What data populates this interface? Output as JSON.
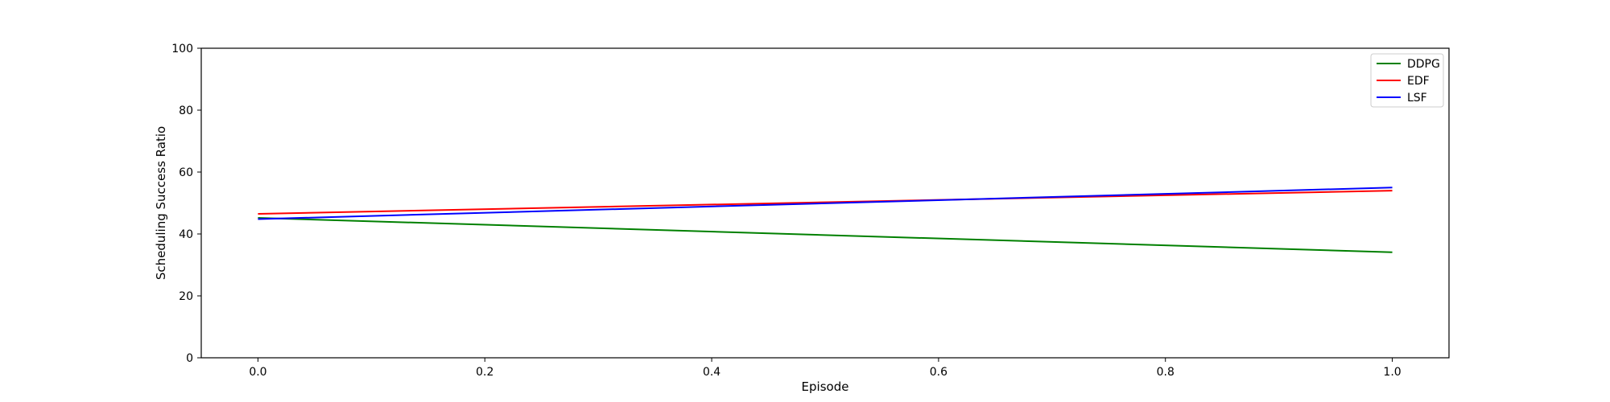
{
  "chart_data": {
    "type": "line",
    "title": "",
    "xlabel": "Episode",
    "ylabel": "Scheduling Success Ratio",
    "x": [
      0.0,
      1.0
    ],
    "xlim": [
      -0.05,
      1.05
    ],
    "ylim": [
      0,
      100
    ],
    "xticks": [
      0.0,
      0.2,
      0.4,
      0.6,
      0.8,
      1.0
    ],
    "xtick_labels": [
      "0.0",
      "0.2",
      "0.4",
      "0.6",
      "0.8",
      "1.0"
    ],
    "yticks": [
      0,
      20,
      40,
      60,
      80,
      100
    ],
    "ytick_labels": [
      "0",
      "20",
      "40",
      "60",
      "80",
      "100"
    ],
    "grid": false,
    "legend_position": "top-right",
    "series": [
      {
        "name": "DDPG",
        "color": "#008000",
        "values": [
          45.2,
          34.1
        ]
      },
      {
        "name": "EDF",
        "color": "#ff0000",
        "values": [
          46.5,
          54.0
        ]
      },
      {
        "name": "LSF",
        "color": "#0000ff",
        "values": [
          44.8,
          55.0
        ]
      }
    ]
  }
}
